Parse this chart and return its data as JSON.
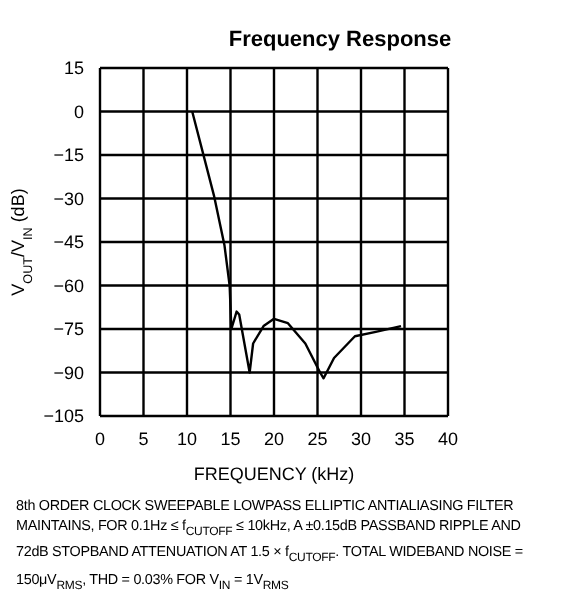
{
  "chart_data": {
    "type": "line",
    "title": "Frequency Response",
    "xlabel": "FREQUENCY (kHz)",
    "ylabel": "V$_{OUT}$/V$_{IN}$ (dB)",
    "x": [
      10.6,
      13.1,
      14.3,
      14.9,
      15.1,
      15.7,
      16.0,
      17.2,
      17.6,
      18.8,
      20,
      21.6,
      23.6,
      25.3,
      25.7,
      26.9,
      29.3,
      31.7,
      34.6
    ],
    "series": [
      {
        "color": "#000000",
        "values": [
          0,
          -29,
          -46,
          -60,
          -75,
          -69,
          -70,
          -90,
          -80,
          -74,
          -71.5,
          -73,
          -80,
          -90,
          -92,
          -85,
          -77.5,
          -76,
          -74
        ]
      }
    ],
    "xlim": [
      0,
      40
    ],
    "xticks": [
      0,
      5,
      10,
      15,
      20,
      25,
      30,
      35,
      40
    ],
    "ylim": [
      -105,
      15
    ],
    "yticks": [
      -105,
      -90,
      -75,
      -60,
      -45,
      -30,
      -15,
      0,
      15
    ],
    "grid": true,
    "marker": "none",
    "line_style": "solid",
    "legend": false,
    "annotations": [
      "8th ORDER CLOCK SWEEPABLE LOWPASS ELLIPTIC ANTIALIASING FILTER MAINTAINS, FOR 0.1Hz ≤ f$_{CUTOFF}$ ≤ 10kHz, A ±0.15dB PASSBAND RIPPLE AND 72dB STOPBAND ATTENUATION AT 1.5 × f$_{CUTOFF}$. TOTAL WIDEBAND NOISE = 150μV$_{RMS}$, THD = 0.03% FOR V$_{IN}$ = 1V$_{RMS}$"
    ]
  }
}
